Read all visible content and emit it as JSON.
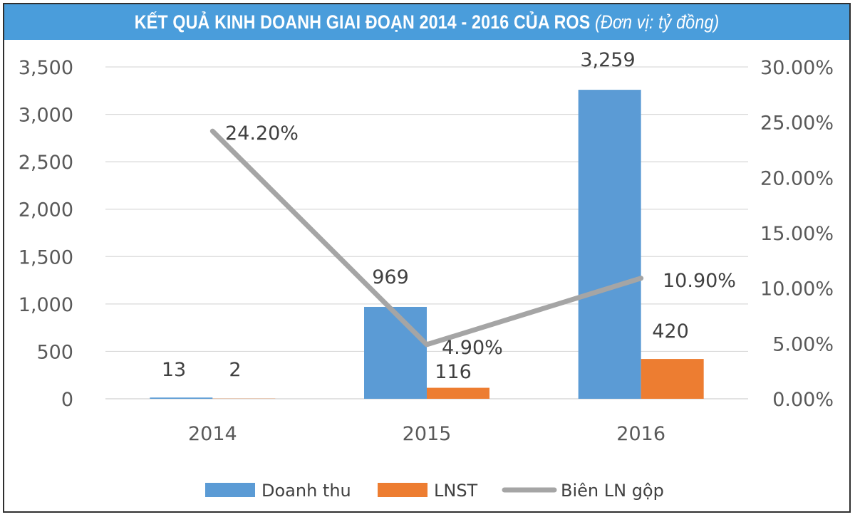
{
  "title": "KẾT QUẢ KINH DOANH GIAI ĐOẠN 2014 - 2016 CỦA ROS",
  "title_unit": "(Đơn vị: tỷ đồng)",
  "colors": {
    "title_bg": "#4a9ddb",
    "doanh_thu": "#5b9bd5",
    "lnst": "#ed7d31",
    "bien_ln_gop": "#a5a5a5",
    "grid": "#d9d9d9"
  },
  "chart_data": {
    "type": "bar",
    "categories": [
      "2014",
      "2015",
      "2016"
    ],
    "series": [
      {
        "name": "Doanh thu",
        "kind": "bar",
        "axis": "left",
        "values": [
          13,
          969,
          3259
        ],
        "labels": [
          "13",
          "969",
          "3,259"
        ]
      },
      {
        "name": "LNST",
        "kind": "bar",
        "axis": "left",
        "values": [
          2,
          116,
          420
        ],
        "labels": [
          "2",
          "116",
          "420"
        ]
      },
      {
        "name": "Biên LN gộp",
        "kind": "line",
        "axis": "right",
        "values": [
          24.2,
          4.9,
          10.9
        ],
        "labels": [
          "24.20%",
          "4.90%",
          "10.90%"
        ]
      }
    ],
    "ylim": [
      0,
      3500
    ],
    "yticks": [
      "0",
      "500",
      "1,000",
      "1,500",
      "2,000",
      "2,500",
      "3,000",
      "3,500"
    ],
    "y2lim": [
      0,
      30
    ],
    "y2ticks": [
      "0.00%",
      "5.00%",
      "10.00%",
      "15.00%",
      "20.00%",
      "25.00%",
      "30.00%"
    ],
    "grid": true,
    "legend": "bottom"
  }
}
